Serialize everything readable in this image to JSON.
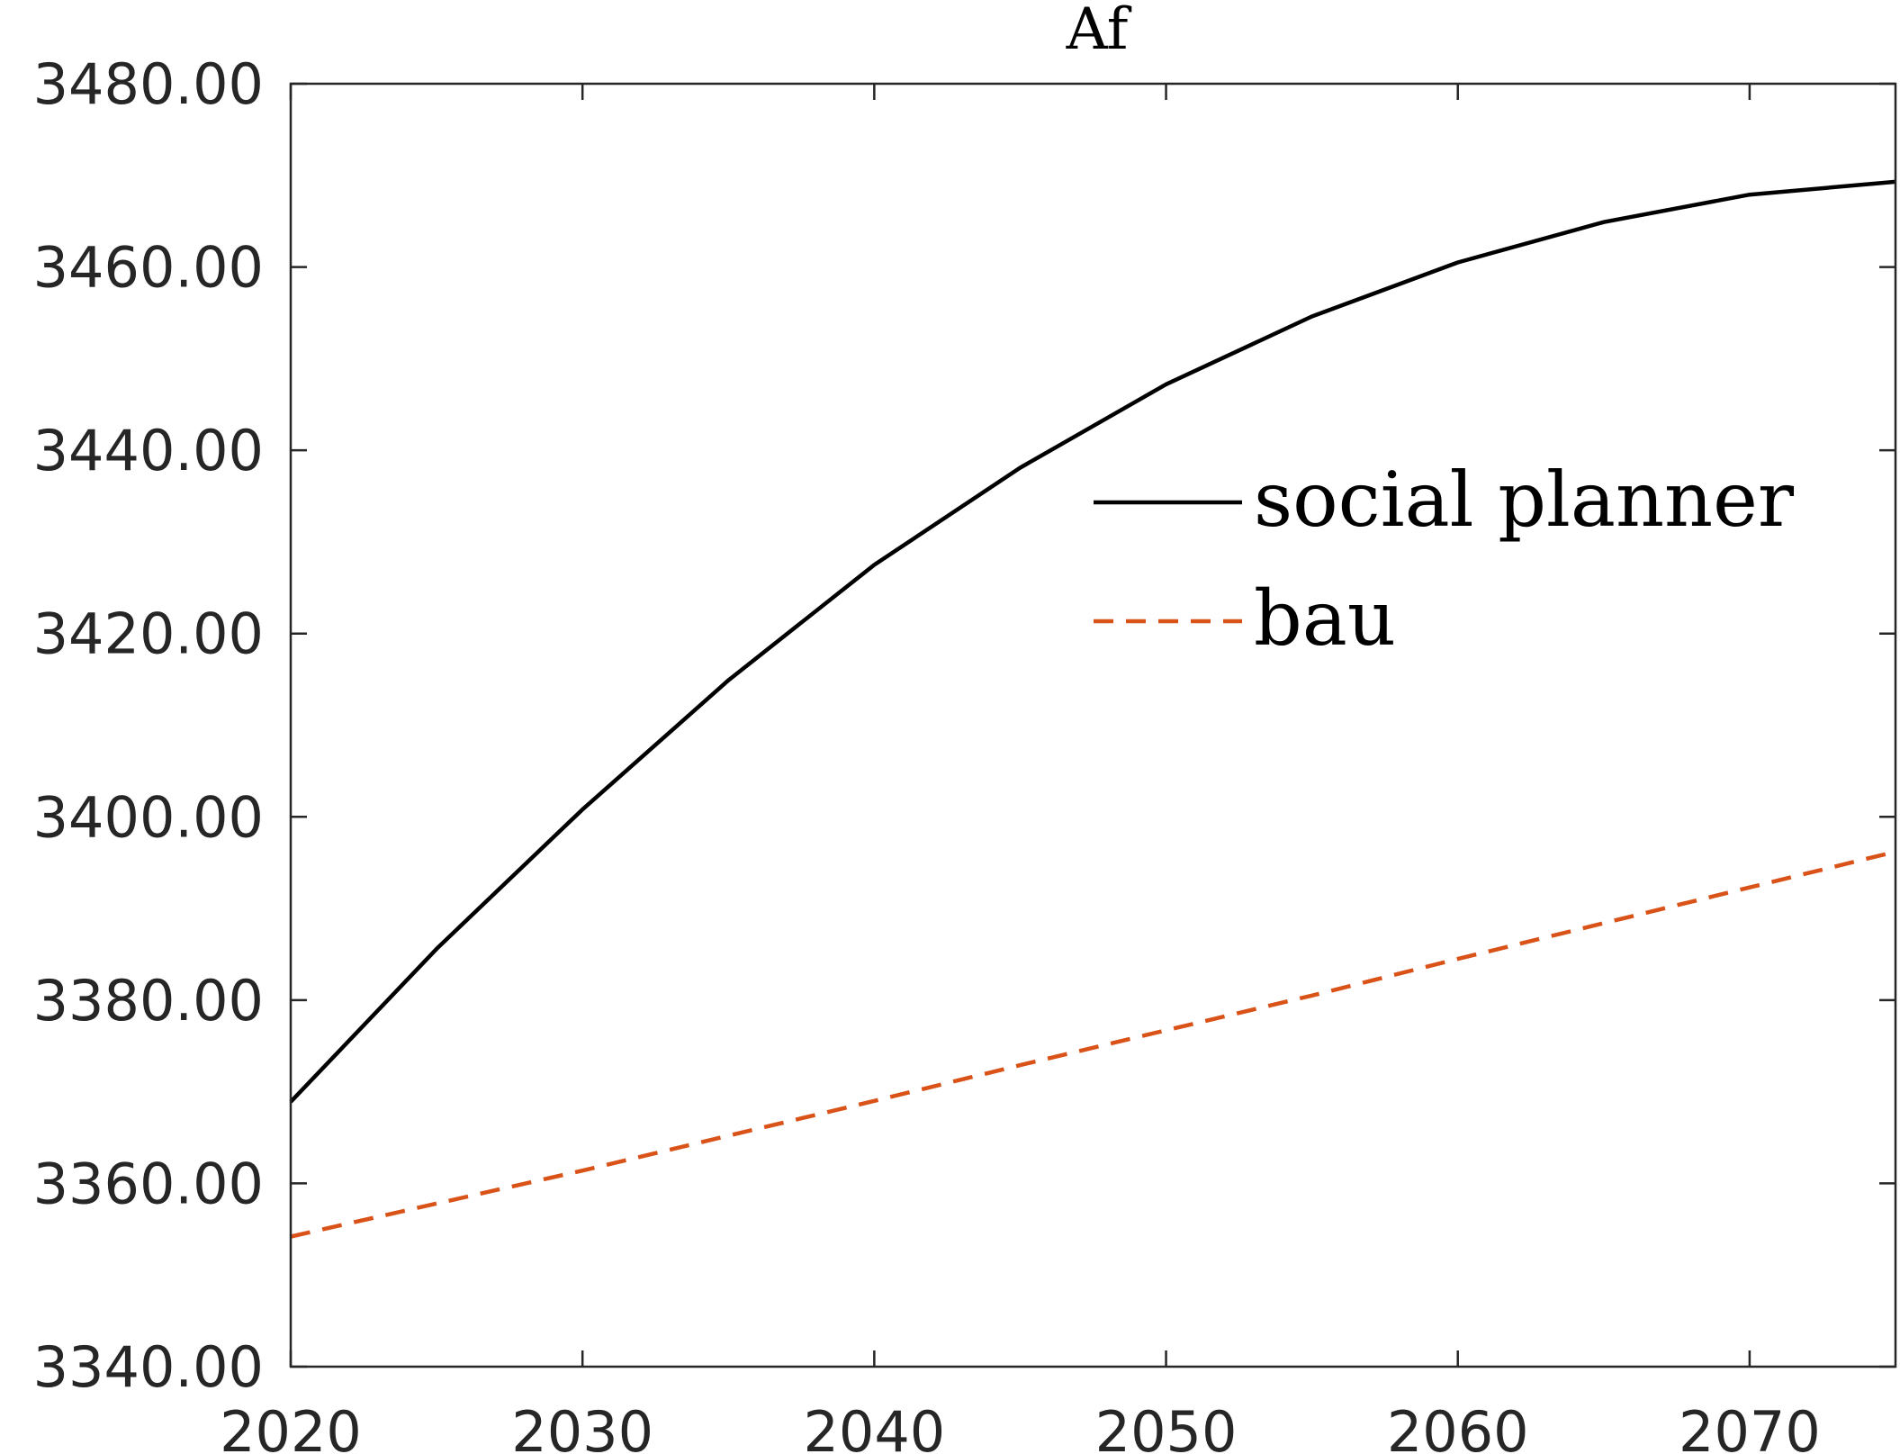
{
  "chart_data": {
    "type": "line",
    "title": "Af",
    "xlabel": "",
    "ylabel": "",
    "xlim": [
      2020,
      2075
    ],
    "ylim": [
      3340,
      3480
    ],
    "xticks": [
      2020,
      2030,
      2040,
      2050,
      2060,
      2070
    ],
    "xtick_labels": [
      "2020",
      "2030",
      "2040",
      "2050",
      "2060",
      "2070"
    ],
    "yticks": [
      3340,
      3360,
      3380,
      3400,
      3420,
      3440,
      3460,
      3480
    ],
    "ytick_labels": [
      "3340.00",
      "3360.00",
      "3380.00",
      "3400.00",
      "3420.00",
      "3440.00",
      "3460.00",
      "3480.00"
    ],
    "grid": false,
    "legend_position": "top-right",
    "x": [
      2020,
      2025,
      2030,
      2035,
      2040,
      2045,
      2050,
      2055,
      2060,
      2065,
      2070,
      2075
    ],
    "series": [
      {
        "name": "social planner",
        "color": "#000000",
        "style": "solid",
        "values": [
          3368.9,
          3385.6,
          3400.8,
          3414.9,
          3427.5,
          3438.1,
          3447.2,
          3454.6,
          3460.5,
          3464.9,
          3467.9,
          3469.3
        ]
      },
      {
        "name": "bau",
        "color": "#D95319",
        "style": "dashed",
        "values": [
          3354.2,
          3357.8,
          3361.4,
          3365.2,
          3369.0,
          3372.9,
          3376.7,
          3380.5,
          3384.5,
          3388.4,
          3392.3,
          3396.2
        ]
      }
    ]
  }
}
